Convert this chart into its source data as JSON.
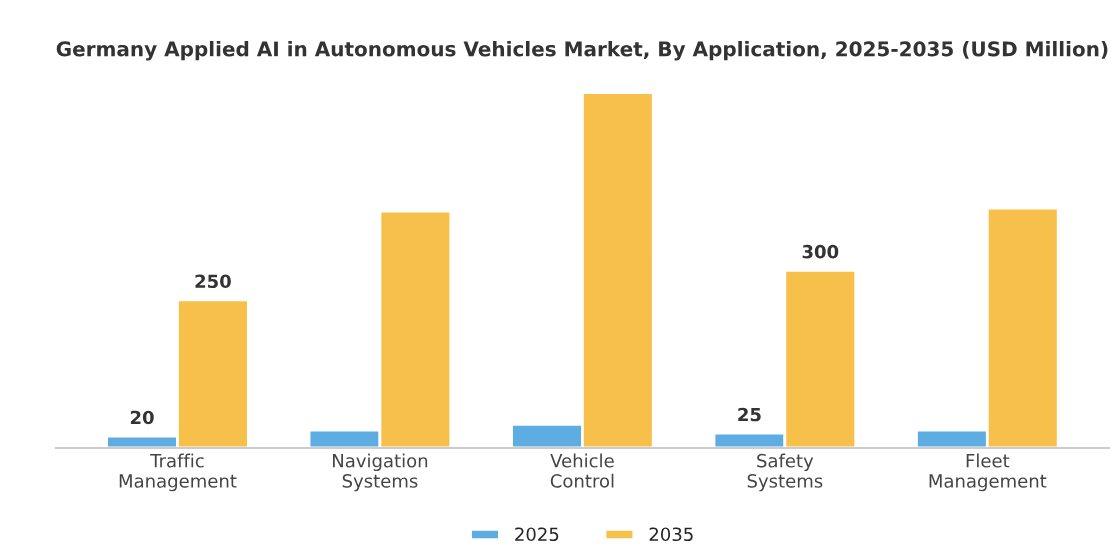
{
  "chart_data": {
    "type": "bar",
    "title": "Germany Applied AI in Autonomous Vehicles Market, By Application, 2025-2035 (USD Million)",
    "categories": [
      "Traffic\nManagement",
      "Navigation\nSystems",
      "Vehicle\nControl",
      "Safety\nSystems",
      "Fleet\nManagement"
    ],
    "series": [
      {
        "name": "2025",
        "color": "#5dade2",
        "values": [
          20,
          30,
          40,
          25,
          30
        ],
        "value_labels": [
          "20",
          null,
          null,
          "25",
          null
        ]
      },
      {
        "name": "2035",
        "color": "#f7c04a",
        "values": [
          250,
          400,
          600,
          300,
          405
        ],
        "value_labels": [
          "250",
          null,
          null,
          "300",
          null
        ]
      }
    ],
    "legend": "bottom",
    "grid": false,
    "tick_labels": "x"
  }
}
